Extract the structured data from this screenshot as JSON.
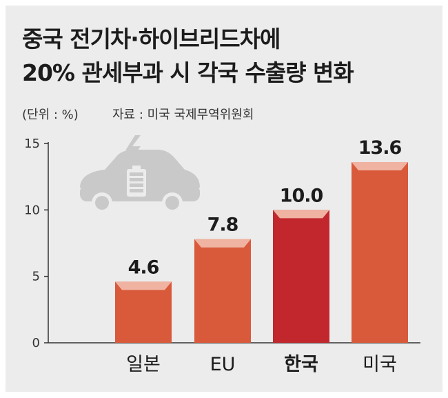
{
  "title_lines": [
    "중국 전기차·하이브리드차에",
    "20% 관세부과 시 각국 수출량 변화"
  ],
  "unit_note": "(단위 : %)",
  "source_note": "자료 : 미국 국제무역위원회",
  "icon": "electric-car-icon",
  "colors": {
    "bar": "#d9593b",
    "bar_highlight": "#c1272d",
    "bar_cap": "#f0b3a1",
    "axis": "#333333",
    "car_icon": "#c9c9c9"
  },
  "chart_data": {
    "type": "bar",
    "title": "중국 전기차·하이브리드차에 20% 관세부과 시 각국 수출량 변화",
    "categories": [
      "일본",
      "EU",
      "한국",
      "미국"
    ],
    "values": [
      4.6,
      7.8,
      10.0,
      13.6
    ],
    "value_labels": [
      "4.6",
      "7.8",
      "10.0",
      "13.6"
    ],
    "highlight": "한국",
    "yticks": [
      "0",
      "5",
      "10",
      "15"
    ],
    "ylim": [
      0,
      15
    ],
    "ylabel": "%",
    "xlabel": "",
    "grid": false
  }
}
